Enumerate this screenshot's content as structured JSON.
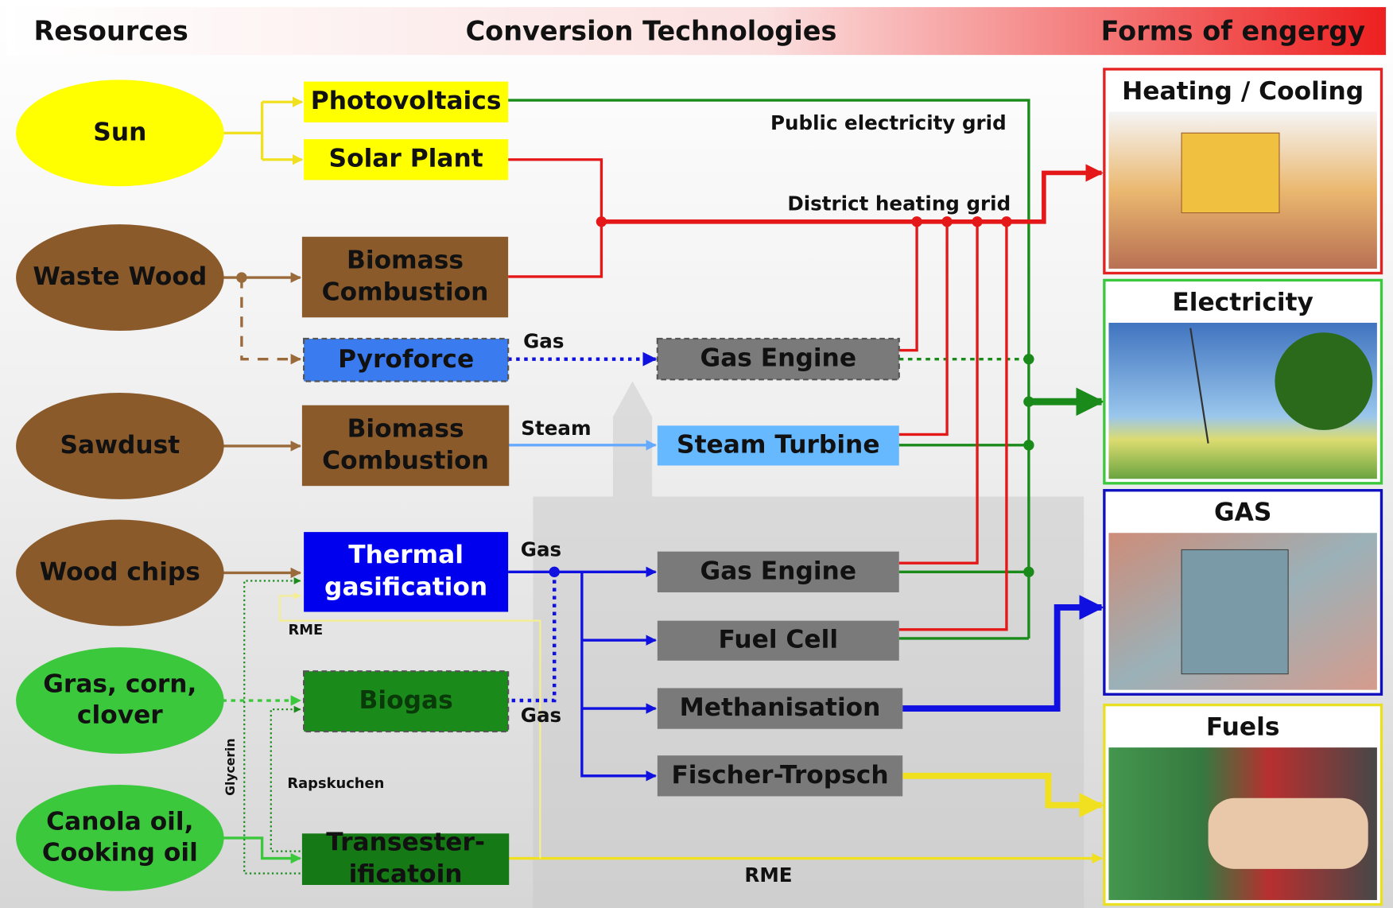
{
  "header": {
    "resources": "Resources",
    "conversion": "Conversion Technologies",
    "forms": "Forms of engergy"
  },
  "resources": [
    {
      "label": [
        "Sun"
      ]
    },
    {
      "label": [
        "Waste Wood"
      ]
    },
    {
      "label": [
        "Sawdust"
      ]
    },
    {
      "label": [
        "Wood chips"
      ]
    },
    {
      "label": [
        "Gras, corn,",
        "clover"
      ]
    },
    {
      "label": [
        "Canola oil,",
        "Cooking oil"
      ]
    }
  ],
  "technologies": [
    {
      "label": [
        "Photovoltaics"
      ]
    },
    {
      "label": [
        "Solar Plant"
      ]
    },
    {
      "label": [
        "Biomass",
        "Combustion"
      ]
    },
    {
      "label": [
        "Pyroforce"
      ]
    },
    {
      "label": [
        "Biomass",
        "Combustion"
      ]
    },
    {
      "label": [
        "Thermal",
        "gasification"
      ]
    },
    {
      "label": [
        "Biogas"
      ]
    },
    {
      "label": [
        "Transester-",
        "ificatoin"
      ]
    },
    {
      "label": [
        "Gas Engine"
      ]
    },
    {
      "label": [
        "Steam Turbine"
      ]
    },
    {
      "label": [
        "Gas Engine"
      ]
    },
    {
      "label": [
        "Fuel Cell"
      ]
    },
    {
      "label": [
        "Methanisation"
      ]
    },
    {
      "label": [
        "Fischer-Tropsch"
      ]
    }
  ],
  "outputs": [
    {
      "label": "Heating / Cooling"
    },
    {
      "label": "Electricity"
    },
    {
      "label": "GAS"
    },
    {
      "label": "Fuels"
    }
  ],
  "edge_labels": [
    "Public electricity grid",
    "District heating grid",
    "Gas",
    "Steam",
    "Gas",
    "Gas",
    "RME",
    "Glycerin",
    "Rapskuchen",
    "RME"
  ]
}
